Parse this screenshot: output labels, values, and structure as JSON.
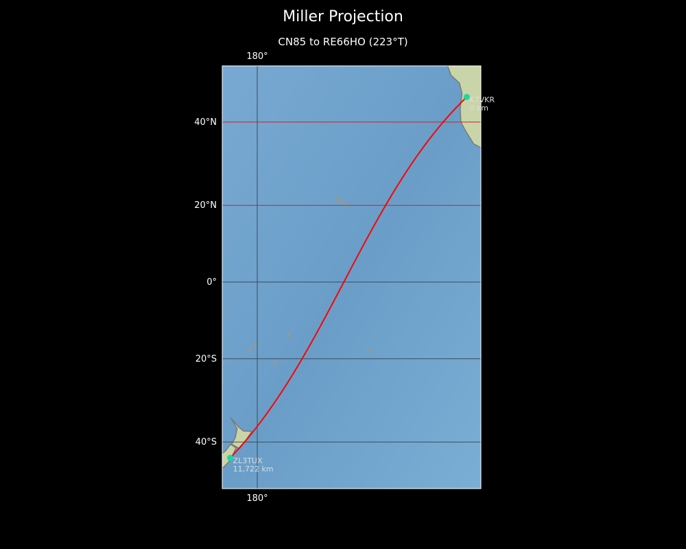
{
  "title": "Miller Projection",
  "subtitle": "CN85 to RE66HO (223°T)",
  "map": {
    "projection": "Miller",
    "extent": {
      "lon_min": 170.4,
      "lon_max": 241.1,
      "lat_min": -50,
      "lat_max": 51.5
    },
    "colors": {
      "ocean": "#6fa3cc",
      "land": "#c9d4a8",
      "path": "#ff0000",
      "station": "#1ed6a0",
      "grid_north": "#cc2222",
      "grid_other": "#3a4a5a"
    },
    "lon_ticks": [
      {
        "lon": 180,
        "label": "180°"
      }
    ],
    "lat_ticks": [
      {
        "lat": 40,
        "label": "40°N"
      },
      {
        "lat": 20,
        "label": "20°N"
      },
      {
        "lat": 0,
        "label": "0°"
      },
      {
        "lat": -20,
        "label": "20°S"
      },
      {
        "lat": -40,
        "label": "40°S"
      }
    ],
    "stations": [
      {
        "call": "K7VKR",
        "distance": "0 km",
        "lat": 45.5,
        "lon": -122.7
      },
      {
        "call": "ZL3TUX",
        "distance": "11,722 km",
        "lat": -43.5,
        "lon": 172.6
      }
    ]
  }
}
